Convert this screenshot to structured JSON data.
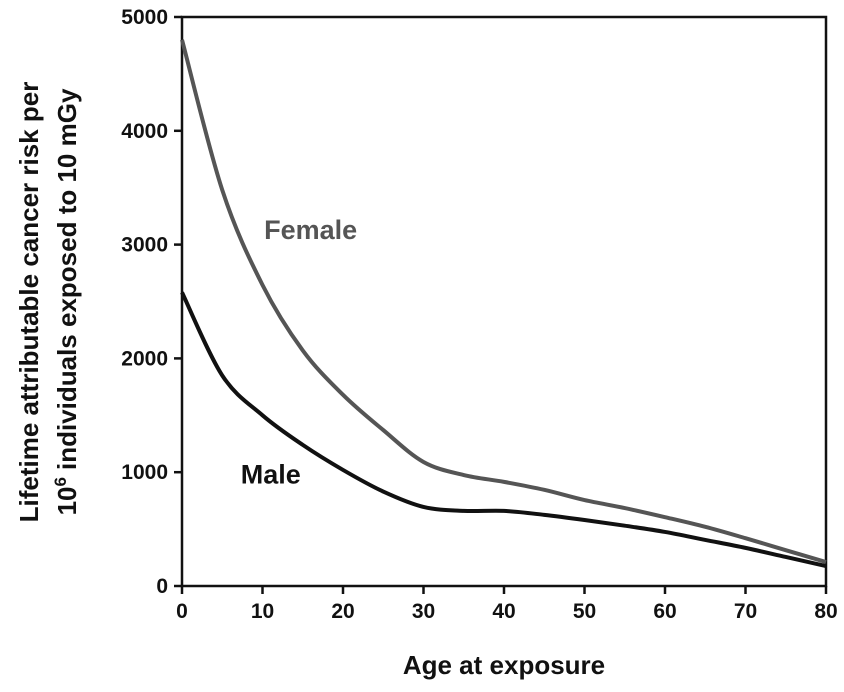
{
  "chart_data": {
    "type": "line",
    "xlabel": "Age at exposure",
    "ylabel_line1": "Lifetime attributable cancer risk per",
    "ylabel_line2_base": "10",
    "ylabel_line2_sup": "6",
    "ylabel_line2_rest": "individuals exposed to 10 mGy",
    "x": [
      0,
      5,
      10,
      15,
      20,
      25,
      30,
      35,
      40,
      45,
      50,
      55,
      60,
      65,
      70,
      75,
      80
    ],
    "series": [
      {
        "name": "Female",
        "color": "#555555",
        "values": [
          4800,
          3480,
          2645,
          2070,
          1680,
          1370,
          1090,
          975,
          915,
          845,
          755,
          685,
          605,
          520,
          420,
          315,
          210
        ]
      },
      {
        "name": "Male",
        "color": "#111111",
        "values": [
          2580,
          1850,
          1500,
          1240,
          1020,
          830,
          695,
          660,
          660,
          625,
          580,
          530,
          475,
          405,
          335,
          255,
          175
        ]
      }
    ],
    "xlim": [
      0,
      80
    ],
    "xticks": [
      0,
      10,
      20,
      30,
      40,
      50,
      60,
      70,
      80
    ],
    "ylim": [
      0,
      5000
    ],
    "yticks": [
      0,
      1000,
      2000,
      3000,
      4000,
      5000
    ]
  }
}
